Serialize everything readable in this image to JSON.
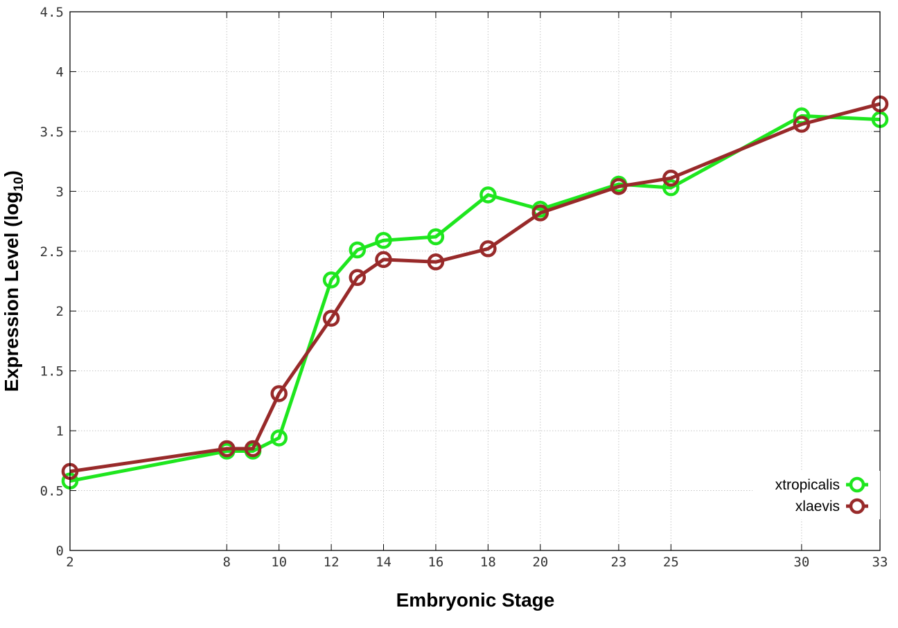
{
  "chart_data": {
    "type": "line",
    "xlabel": "Embryonic Stage",
    "ylabel_main": "Expression Level (log",
    "ylabel_sub": "10",
    "ylabel_close": ")",
    "xlim": [
      2,
      33
    ],
    "ylim": [
      0,
      4.5
    ],
    "x": [
      2,
      8,
      9,
      10,
      12,
      13,
      14,
      16,
      18,
      20,
      23,
      25,
      30,
      33
    ],
    "x_ticks": [
      "2",
      "8",
      "10",
      "12",
      "14",
      "16",
      "18",
      "20",
      "23",
      "25",
      "30",
      "33"
    ],
    "y_ticks": [
      "0",
      "0.5",
      "1",
      "1.5",
      "2",
      "2.5",
      "3",
      "3.5",
      "4",
      "4.5"
    ],
    "grid": true,
    "legend_position": "bottom-right",
    "series": [
      {
        "name": "xtropicalis",
        "color": "#1ee61e",
        "values": [
          0.58,
          0.83,
          0.83,
          0.94,
          2.26,
          2.51,
          2.59,
          2.62,
          2.97,
          2.85,
          3.06,
          3.03,
          3.63,
          3.6
        ]
      },
      {
        "name": "xlaevis",
        "color": "#982a2a",
        "values": [
          0.66,
          0.85,
          0.85,
          1.31,
          1.94,
          2.28,
          2.43,
          2.41,
          2.52,
          2.82,
          3.04,
          3.11,
          3.56,
          3.73
        ]
      }
    ]
  }
}
